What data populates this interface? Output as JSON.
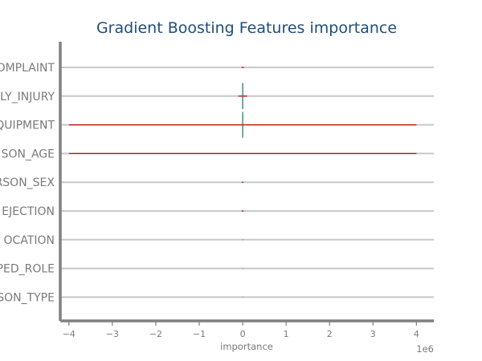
{
  "chart_data": {
    "type": "bar",
    "orientation": "horizontal",
    "title": "Gradient Boosting Features importance",
    "xlabel": "importance",
    "x_offset_label": "1e6",
    "x_scale_factor": 1000000,
    "xlim": [
      -4200000,
      4400000
    ],
    "xticks": [
      -4,
      -3,
      -2,
      -1,
      0,
      1,
      2,
      3,
      4
    ],
    "xtick_labels": [
      "−4",
      "−3",
      "−2",
      "−1",
      "0",
      "1",
      "2",
      "3",
      "4"
    ],
    "grid": "horizontal lines at each category",
    "categories": [
      "COMPLAINT",
      "BODILY_INJURY",
      "SAFETY_EQUIPMENT",
      "PERSON_AGE",
      "PERSON_SEX",
      "EJECTION",
      "POSITION_IN_VEHICLE_LOCATION",
      "PED_ROLE",
      "PERSON_TYPE"
    ],
    "visible_category_labels": [
      "OMPLAINT",
      "LY_INJURY",
      "QUIPMENT",
      "SON_AGE",
      "RSON_SEX",
      "EJECTION",
      "OCATION",
      "PED_ROLE",
      "SON_TYPE"
    ],
    "values": [
      0.0,
      0.0,
      0.0,
      0.0,
      0.0,
      0.0,
      0.0,
      0.0,
      0.0
    ],
    "error_low": [
      -25000,
      -100000,
      -4000000,
      -4000000,
      -20000,
      -20000,
      -5000,
      -5000,
      -5000
    ],
    "error_high": [
      25000,
      100000,
      4000000,
      4000000,
      20000,
      20000,
      5000,
      5000,
      5000
    ],
    "bar_halfwidth": [
      0,
      0.45,
      0.45,
      0,
      0,
      0,
      0,
      0,
      0
    ],
    "colors": {
      "title": "#1f4e79",
      "error": "#cc1111",
      "bar": "#1a6b6b",
      "grid": "#c8c8c8",
      "spine": "#808080",
      "label": "#7a7a7a"
    }
  }
}
